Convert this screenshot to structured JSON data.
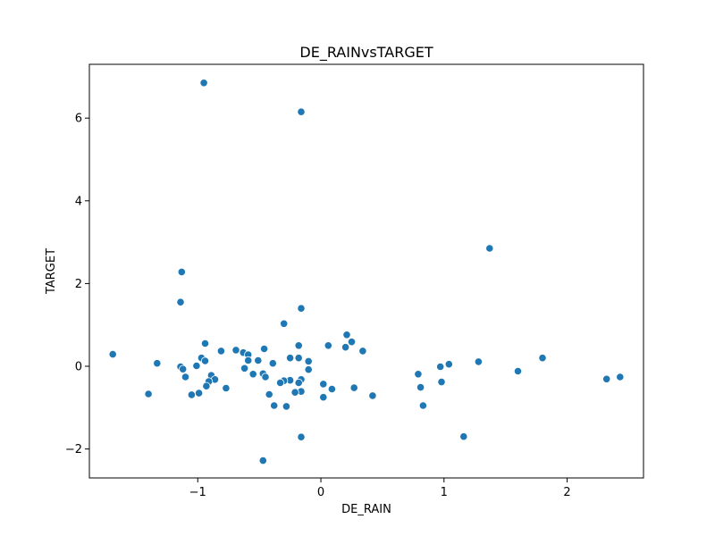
{
  "chart_data": {
    "type": "scatter",
    "title": "DE_RAINvsTARGET",
    "xlabel": "DE_RAIN",
    "ylabel": "TARGET",
    "xlim": [
      -1.88,
      2.62
    ],
    "ylim": [
      -2.7,
      7.3
    ],
    "xticks": [
      -1,
      0,
      1,
      2
    ],
    "yticks": [
      -2,
      0,
      2,
      4,
      6
    ],
    "xtick_labels": [
      "−1",
      "0",
      "1",
      "2"
    ],
    "ytick_labels": [
      "−2",
      "0",
      "2",
      "4",
      "6"
    ],
    "grid": false,
    "marker_color": "#1f77b4",
    "points": [
      {
        "x": -0.95,
        "y": 6.85
      },
      {
        "x": -0.16,
        "y": 6.15
      },
      {
        "x": 1.37,
        "y": 2.85
      },
      {
        "x": -1.13,
        "y": 2.28
      },
      {
        "x": -1.14,
        "y": 1.55
      },
      {
        "x": -0.16,
        "y": 1.4
      },
      {
        "x": -0.3,
        "y": 1.03
      },
      {
        "x": 0.21,
        "y": 0.76
      },
      {
        "x": 0.25,
        "y": 0.59
      },
      {
        "x": -0.94,
        "y": 0.55
      },
      {
        "x": -0.18,
        "y": 0.5
      },
      {
        "x": 0.06,
        "y": 0.5
      },
      {
        "x": 0.2,
        "y": 0.46
      },
      {
        "x": -0.46,
        "y": 0.42
      },
      {
        "x": -0.69,
        "y": 0.39
      },
      {
        "x": -0.81,
        "y": 0.37
      },
      {
        "x": 0.34,
        "y": 0.37
      },
      {
        "x": -0.63,
        "y": 0.33
      },
      {
        "x": -1.69,
        "y": 0.29
      },
      {
        "x": -0.59,
        "y": 0.28
      },
      {
        "x": -0.97,
        "y": 0.2
      },
      {
        "x": -0.25,
        "y": 0.2
      },
      {
        "x": -0.18,
        "y": 0.2
      },
      {
        "x": 1.8,
        "y": 0.2
      },
      {
        "x": -0.59,
        "y": 0.14
      },
      {
        "x": -0.51,
        "y": 0.14
      },
      {
        "x": -0.94,
        "y": 0.13
      },
      {
        "x": -0.1,
        "y": 0.12
      },
      {
        "x": 1.28,
        "y": 0.11
      },
      {
        "x": -1.33,
        "y": 0.07
      },
      {
        "x": -0.39,
        "y": 0.07
      },
      {
        "x": 1.04,
        "y": 0.05
      },
      {
        "x": -1.01,
        "y": 0.01
      },
      {
        "x": -1.14,
        "y": -0.01
      },
      {
        "x": 0.97,
        "y": -0.01
      },
      {
        "x": -0.62,
        "y": -0.05
      },
      {
        "x": -1.12,
        "y": -0.07
      },
      {
        "x": -0.1,
        "y": -0.08
      },
      {
        "x": 1.6,
        "y": -0.12
      },
      {
        "x": -0.47,
        "y": -0.18
      },
      {
        "x": -0.55,
        "y": -0.19
      },
      {
        "x": 0.79,
        "y": -0.19
      },
      {
        "x": -0.89,
        "y": -0.22
      },
      {
        "x": -1.1,
        "y": -0.26
      },
      {
        "x": -0.45,
        "y": -0.26
      },
      {
        "x": 2.43,
        "y": -0.26
      },
      {
        "x": 2.32,
        "y": -0.31
      },
      {
        "x": -0.86,
        "y": -0.32
      },
      {
        "x": -0.16,
        "y": -0.32
      },
      {
        "x": -0.25,
        "y": -0.34
      },
      {
        "x": -0.3,
        "y": -0.35
      },
      {
        "x": -0.91,
        "y": -0.37
      },
      {
        "x": 0.98,
        "y": -0.38
      },
      {
        "x": -0.33,
        "y": -0.4
      },
      {
        "x": -0.18,
        "y": -0.4
      },
      {
        "x": 0.02,
        "y": -0.43
      },
      {
        "x": -0.93,
        "y": -0.48
      },
      {
        "x": 0.81,
        "y": -0.51
      },
      {
        "x": 0.27,
        "y": -0.52
      },
      {
        "x": -0.77,
        "y": -0.53
      },
      {
        "x": 0.09,
        "y": -0.55
      },
      {
        "x": -0.16,
        "y": -0.61
      },
      {
        "x": -0.21,
        "y": -0.63
      },
      {
        "x": -0.99,
        "y": -0.65
      },
      {
        "x": -1.4,
        "y": -0.67
      },
      {
        "x": -0.42,
        "y": -0.68
      },
      {
        "x": -1.05,
        "y": -0.69
      },
      {
        "x": 0.42,
        "y": -0.71
      },
      {
        "x": 0.02,
        "y": -0.75
      },
      {
        "x": -0.38,
        "y": -0.95
      },
      {
        "x": 0.83,
        "y": -0.95
      },
      {
        "x": -0.28,
        "y": -0.97
      },
      {
        "x": 1.16,
        "y": -1.7
      },
      {
        "x": -0.16,
        "y": -1.71
      },
      {
        "x": -0.47,
        "y": -2.28
      }
    ]
  }
}
